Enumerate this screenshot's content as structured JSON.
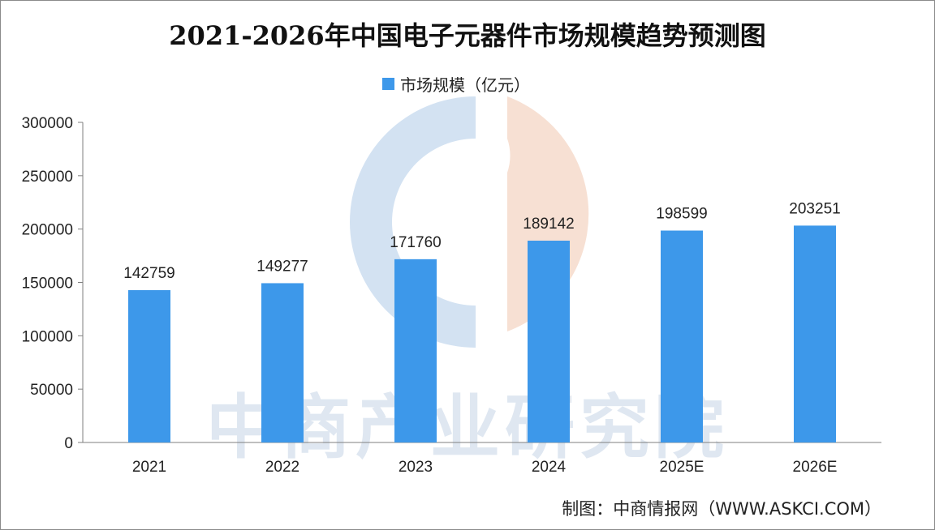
{
  "chart_data": {
    "type": "bar",
    "title": "2021-2026年中国电子元器件市场规模趋势预测图",
    "legend_position": "top-center",
    "categories": [
      "2021",
      "2022",
      "2023",
      "2024",
      "2025E",
      "2026E"
    ],
    "series": [
      {
        "name": "市场规模（亿元）",
        "values": [
          142759,
          149277,
          171760,
          189142,
          198599,
          203251
        ],
        "color": "#3d98ea"
      }
    ],
    "data_labels": [
      "142759",
      "149277",
      "171760",
      "189142",
      "198599",
      "203251"
    ],
    "y_ticks": [
      "0",
      "50000",
      "100000",
      "150000",
      "200000",
      "250000",
      "300000"
    ],
    "ylim": [
      0,
      300000
    ],
    "grid": false
  },
  "source": "制图：中商情报网（WWW.ASKCI.COM）",
  "watermark": "中商产业研究院",
  "colors": {
    "bar": "#3d98ea",
    "axis": "#7f7f7f",
    "watermark_blue": "#d3e2f2",
    "watermark_orange": "#f7e0d3"
  }
}
